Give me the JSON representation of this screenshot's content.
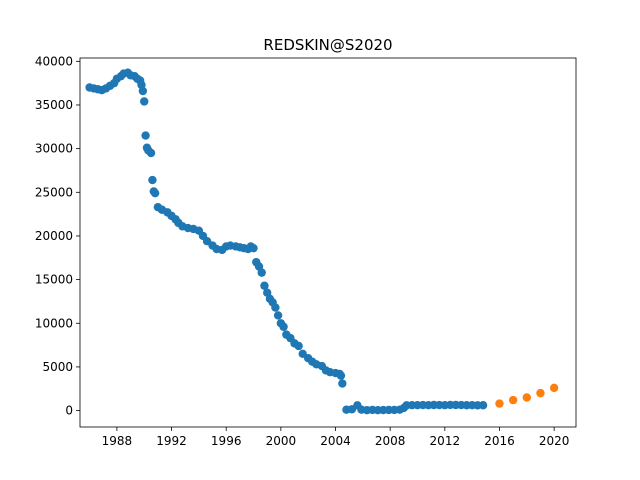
{
  "chart_data": {
    "type": "scatter",
    "title": "REDSKIN@S2020",
    "xlabel": "",
    "ylabel": "",
    "xlim": [
      1985.3,
      2021.6
    ],
    "ylim": [
      -1880,
      40380
    ],
    "x_ticks": [
      "1988",
      "1992",
      "1996",
      "2000",
      "2004",
      "2008",
      "2012",
      "2016",
      "2020"
    ],
    "y_ticks": [
      "0",
      "5000",
      "10000",
      "15000",
      "20000",
      "25000",
      "30000",
      "35000",
      "40000"
    ],
    "grid": false,
    "series": [
      {
        "color": "#1f77b4",
        "x": [
          1986.0,
          1986.3,
          1986.6,
          1986.9,
          1987.2,
          1987.5,
          1987.8,
          1988.0,
          1988.3,
          1988.5,
          1988.8,
          1989.0,
          1989.3,
          1989.5,
          1989.7,
          1989.8,
          1989.9,
          1990.0,
          1990.1,
          1990.2,
          1990.3,
          1990.5,
          1990.6,
          1990.7,
          1990.8,
          1991.0,
          1991.3,
          1991.7,
          1992.0,
          1992.3,
          1992.5,
          1992.8,
          1993.2,
          1993.6,
          1994.0,
          1994.3,
          1994.6,
          1995.0,
          1995.3,
          1995.7,
          1996.0,
          1996.3,
          1996.7,
          1997.0,
          1997.3,
          1997.6,
          1997.8,
          1998.0,
          1998.2,
          1998.4,
          1998.6,
          1998.8,
          1999.0,
          1999.2,
          1999.4,
          1999.6,
          1999.8,
          2000.0,
          2000.2,
          2000.4,
          2000.7,
          2001.0,
          2001.3,
          2001.6,
          2002.0,
          2002.3,
          2002.6,
          2003.0,
          2003.3,
          2003.6,
          2004.0,
          2004.3,
          2004.4,
          2004.5,
          2004.8,
          2005.2,
          2005.6,
          2005.9,
          2006.3,
          2006.7,
          2007.1,
          2007.5,
          2007.9,
          2008.3,
          2008.7,
          2009.0,
          2009.2,
          2009.6,
          2010.0,
          2010.4,
          2010.8,
          2011.2,
          2011.6,
          2012.0,
          2012.4,
          2012.8,
          2013.2,
          2013.6,
          2014.0,
          2014.4,
          2014.8
        ],
        "y": [
          37000,
          36900,
          36800,
          36700,
          36900,
          37200,
          37500,
          38000,
          38300,
          38600,
          38700,
          38400,
          38300,
          38000,
          37800,
          37300,
          36600,
          35400,
          31500,
          30100,
          29800,
          29500,
          26400,
          25100,
          24900,
          23300,
          23000,
          22700,
          22300,
          21900,
          21500,
          21100,
          20900,
          20800,
          20600,
          20000,
          19400,
          18900,
          18500,
          18400,
          18800,
          18900,
          18800,
          18700,
          18600,
          18500,
          18800,
          18600,
          17000,
          16500,
          15800,
          14300,
          13500,
          12800,
          12400,
          11800,
          10900,
          10000,
          9600,
          8700,
          8300,
          7700,
          7400,
          6500,
          6000,
          5600,
          5300,
          5100,
          4600,
          4400,
          4300,
          4200,
          4000,
          3100,
          100,
          150,
          600,
          100,
          50,
          80,
          50,
          60,
          70,
          80,
          100,
          300,
          600,
          620,
          620,
          630,
          620,
          640,
          630,
          620,
          650,
          640,
          630,
          610,
          620,
          600,
          610
        ]
      },
      {
        "color": "#ff7f0e",
        "x": [
          2016.0,
          2017.0,
          2018.0,
          2019.0,
          2020.0
        ],
        "y": [
          800,
          1200,
          1500,
          2000,
          2600
        ]
      }
    ]
  }
}
